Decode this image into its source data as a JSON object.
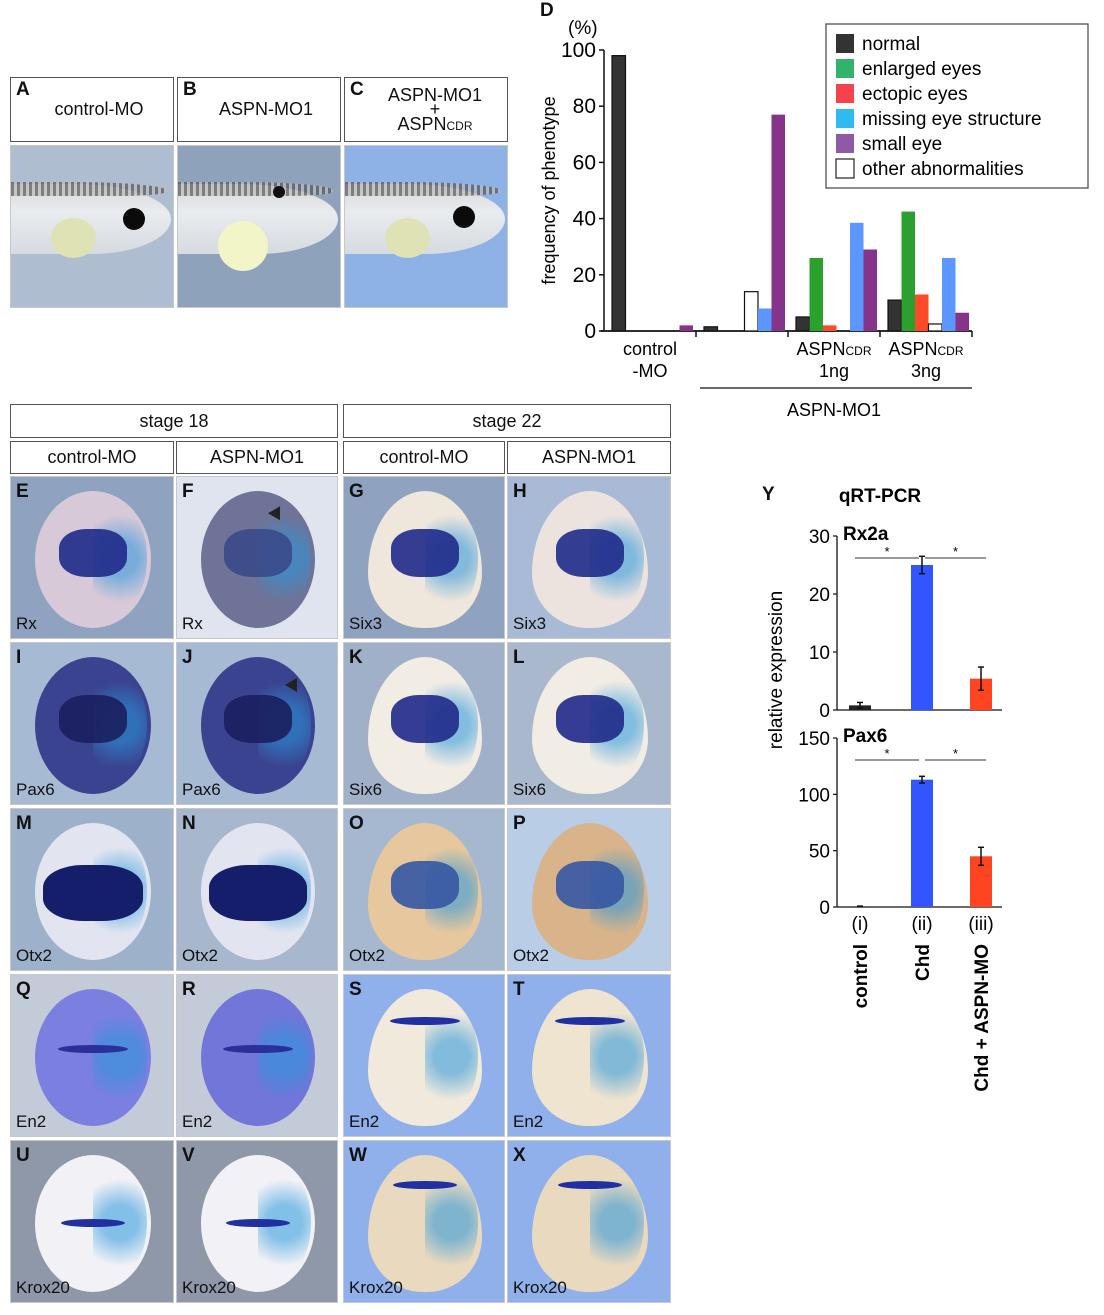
{
  "panels_top": [
    {
      "letter": "A",
      "title": "control-MO"
    },
    {
      "letter": "B",
      "title": "ASPN-MO1"
    },
    {
      "letter": "C",
      "title_line1": "ASPN-MO1",
      "title_plus": "+",
      "title_line2_main": "ASPN",
      "title_line2_sub": "CDR"
    }
  ],
  "grid_headers": {
    "stage18": "stage 18",
    "stage22": "stage 22",
    "cols": [
      "control-MO",
      "ASPN-MO1",
      "control-MO",
      "ASPN-MO1"
    ]
  },
  "grid_panels": [
    {
      "letter": "E",
      "gene": "Rx"
    },
    {
      "letter": "F",
      "gene": "Rx"
    },
    {
      "letter": "G",
      "gene": "Six3"
    },
    {
      "letter": "H",
      "gene": "Six3"
    },
    {
      "letter": "I",
      "gene": "Pax6"
    },
    {
      "letter": "J",
      "gene": "Pax6"
    },
    {
      "letter": "K",
      "gene": "Six6"
    },
    {
      "letter": "L",
      "gene": "Six6"
    },
    {
      "letter": "M",
      "gene": "Otx2"
    },
    {
      "letter": "N",
      "gene": "Otx2"
    },
    {
      "letter": "O",
      "gene": "Otx2"
    },
    {
      "letter": "P",
      "gene": "Otx2"
    },
    {
      "letter": "Q",
      "gene": "En2"
    },
    {
      "letter": "R",
      "gene": "En2"
    },
    {
      "letter": "S",
      "gene": "En2"
    },
    {
      "letter": "T",
      "gene": "En2"
    },
    {
      "letter": "U",
      "gene": "Krox20"
    },
    {
      "letter": "V",
      "gene": "Krox20"
    },
    {
      "letter": "W",
      "gene": "Krox20"
    },
    {
      "letter": "X",
      "gene": "Krox20"
    }
  ],
  "chart_data": [
    {
      "panel": "D",
      "type": "bar",
      "title": "",
      "ylabel": "frequency of phenotype",
      "yunit": "(%)",
      "ylim": [
        0,
        100
      ],
      "yticks": [
        0,
        20,
        40,
        60,
        80,
        100
      ],
      "categories": [
        "control-MO",
        "ASPN-MO1",
        "ASPN-MO1 + ASPN_CDR 1ng",
        "ASPN-MO1 + ASPN_CDR 3ng"
      ],
      "category_labels": [
        {
          "line1": "control",
          "line2": "-MO"
        },
        {
          "line1": "",
          "line2": ""
        },
        {
          "main": "ASPN",
          "sub": "CDR",
          "line2": "1ng"
        },
        {
          "main": "ASPN",
          "sub": "CDR",
          "line2": "3ng"
        }
      ],
      "group_label": "ASPN-MO1",
      "legend_position": "top-right",
      "series": [
        {
          "name": "normal",
          "color": "#333333",
          "values": [
            98,
            1.5,
            5,
            11
          ]
        },
        {
          "name": "enlarged eyes",
          "color": "#2ca02c",
          "values": [
            0,
            0,
            26,
            42.5
          ]
        },
        {
          "name": "ectopic eyes",
          "color": "#ff4a2a",
          "values": [
            0,
            0,
            2,
            13
          ]
        },
        {
          "name": "other abnormalities",
          "color": "#ffffff",
          "values": [
            0,
            14,
            0,
            2.5
          ]
        },
        {
          "name": "missing eye structure",
          "color": "#5b97ff",
          "values": [
            0,
            8,
            38.5,
            26
          ]
        },
        {
          "name": "small eye",
          "color": "#86338a",
          "values": [
            2,
            77,
            29,
            6.5
          ]
        }
      ],
      "legend": [
        {
          "name": "normal",
          "color": "#333333"
        },
        {
          "name": "enlarged eyes",
          "color": "#31b36b"
        },
        {
          "name": "ectopic eyes",
          "color": "#f4434d"
        },
        {
          "name": "missing eye structure",
          "color": "#2fbaf0"
        },
        {
          "name": "small eye",
          "color": "#8e5aa6"
        },
        {
          "name": "other abnormalities",
          "color": "#ffffff"
        }
      ]
    },
    {
      "panel": "Y",
      "type": "bar",
      "title": "qRT-PCR",
      "ylabel": "relative expression",
      "categories": [
        "(i)",
        "(ii)",
        "(iii)"
      ],
      "category_names": [
        "control",
        "Chd",
        "Chd + ASPN-MO"
      ],
      "subplots": [
        {
          "gene": "Rx2a",
          "ylim": [
            0,
            30
          ],
          "yticks": [
            0,
            10,
            20,
            30
          ],
          "values": [
            0.8,
            25,
            5.4
          ],
          "errors": [
            0.5,
            1.5,
            2
          ],
          "colors": [
            "#222222",
            "#3355ff",
            "#ff4422"
          ],
          "significance": [
            "*",
            "*"
          ]
        },
        {
          "gene": "Pax6",
          "ylim": [
            0,
            150
          ],
          "yticks": [
            0,
            50,
            100,
            150
          ],
          "values": [
            0.5,
            113,
            45
          ],
          "errors": [
            0.3,
            3,
            8
          ],
          "colors": [
            "#222222",
            "#3355ff",
            "#ff4422"
          ],
          "significance": [
            "*",
            "*"
          ]
        }
      ]
    }
  ]
}
